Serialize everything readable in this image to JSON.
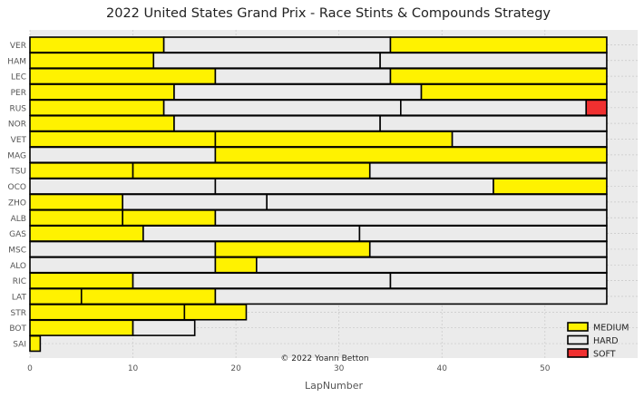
{
  "chart_data": {
    "type": "bar",
    "orientation": "horizontal",
    "stacked": true,
    "title": "2022 United States Grand Prix - Race Stints & Compounds Strategy",
    "xlabel": "LapNumber",
    "ylabel": "",
    "xlim": [
      0,
      59
    ],
    "xticks": [
      0,
      10,
      20,
      30,
      40,
      50
    ],
    "grid": true,
    "legend_position": "lower-right",
    "annotation": "© 2022 Yoann Betton",
    "compounds": [
      {
        "name": "MEDIUM",
        "color": "#fff200"
      },
      {
        "name": "HARD",
        "color": "#ebebeb"
      },
      {
        "name": "SOFT",
        "color": "#f03030"
      }
    ],
    "drivers": [
      {
        "driver": "VER",
        "stints": [
          {
            "compound": "MEDIUM",
            "start": 0,
            "end": 13
          },
          {
            "compound": "HARD",
            "start": 13,
            "end": 35
          },
          {
            "compound": "MEDIUM",
            "start": 35,
            "end": 56
          }
        ]
      },
      {
        "driver": "HAM",
        "stints": [
          {
            "compound": "MEDIUM",
            "start": 0,
            "end": 12
          },
          {
            "compound": "HARD",
            "start": 12,
            "end": 34
          },
          {
            "compound": "HARD",
            "start": 34,
            "end": 56
          }
        ]
      },
      {
        "driver": "LEC",
        "stints": [
          {
            "compound": "MEDIUM",
            "start": 0,
            "end": 18
          },
          {
            "compound": "HARD",
            "start": 18,
            "end": 35
          },
          {
            "compound": "MEDIUM",
            "start": 35,
            "end": 56
          }
        ]
      },
      {
        "driver": "PER",
        "stints": [
          {
            "compound": "MEDIUM",
            "start": 0,
            "end": 14
          },
          {
            "compound": "HARD",
            "start": 14,
            "end": 38
          },
          {
            "compound": "MEDIUM",
            "start": 38,
            "end": 56
          }
        ]
      },
      {
        "driver": "RUS",
        "stints": [
          {
            "compound": "MEDIUM",
            "start": 0,
            "end": 13
          },
          {
            "compound": "HARD",
            "start": 13,
            "end": 36
          },
          {
            "compound": "HARD",
            "start": 36,
            "end": 54
          },
          {
            "compound": "SOFT",
            "start": 54,
            "end": 56
          }
        ]
      },
      {
        "driver": "NOR",
        "stints": [
          {
            "compound": "MEDIUM",
            "start": 0,
            "end": 14
          },
          {
            "compound": "HARD",
            "start": 14,
            "end": 34
          },
          {
            "compound": "HARD",
            "start": 34,
            "end": 56
          }
        ]
      },
      {
        "driver": "VET",
        "stints": [
          {
            "compound": "MEDIUM",
            "start": 0,
            "end": 18
          },
          {
            "compound": "MEDIUM",
            "start": 18,
            "end": 41
          },
          {
            "compound": "HARD",
            "start": 41,
            "end": 56
          }
        ]
      },
      {
        "driver": "MAG",
        "stints": [
          {
            "compound": "HARD",
            "start": 0,
            "end": 18
          },
          {
            "compound": "MEDIUM",
            "start": 18,
            "end": 56
          }
        ]
      },
      {
        "driver": "TSU",
        "stints": [
          {
            "compound": "MEDIUM",
            "start": 0,
            "end": 10
          },
          {
            "compound": "MEDIUM",
            "start": 10,
            "end": 33
          },
          {
            "compound": "HARD",
            "start": 33,
            "end": 56
          }
        ]
      },
      {
        "driver": "OCO",
        "stints": [
          {
            "compound": "HARD",
            "start": 0,
            "end": 18
          },
          {
            "compound": "HARD",
            "start": 18,
            "end": 45
          },
          {
            "compound": "MEDIUM",
            "start": 45,
            "end": 56
          }
        ]
      },
      {
        "driver": "ZHO",
        "stints": [
          {
            "compound": "MEDIUM",
            "start": 0,
            "end": 9
          },
          {
            "compound": "HARD",
            "start": 9,
            "end": 23
          },
          {
            "compound": "HARD",
            "start": 23,
            "end": 56
          }
        ]
      },
      {
        "driver": "ALB",
        "stints": [
          {
            "compound": "MEDIUM",
            "start": 0,
            "end": 9
          },
          {
            "compound": "MEDIUM",
            "start": 9,
            "end": 18
          },
          {
            "compound": "HARD",
            "start": 18,
            "end": 56
          }
        ]
      },
      {
        "driver": "GAS",
        "stints": [
          {
            "compound": "MEDIUM",
            "start": 0,
            "end": 11
          },
          {
            "compound": "HARD",
            "start": 11,
            "end": 32
          },
          {
            "compound": "HARD",
            "start": 32,
            "end": 56
          }
        ]
      },
      {
        "driver": "MSC",
        "stints": [
          {
            "compound": "HARD",
            "start": 0,
            "end": 18
          },
          {
            "compound": "MEDIUM",
            "start": 18,
            "end": 33
          },
          {
            "compound": "HARD",
            "start": 33,
            "end": 56
          }
        ]
      },
      {
        "driver": "ALO",
        "stints": [
          {
            "compound": "HARD",
            "start": 0,
            "end": 18
          },
          {
            "compound": "MEDIUM",
            "start": 18,
            "end": 22
          },
          {
            "compound": "HARD",
            "start": 22,
            "end": 56
          }
        ]
      },
      {
        "driver": "RIC",
        "stints": [
          {
            "compound": "MEDIUM",
            "start": 0,
            "end": 10
          },
          {
            "compound": "HARD",
            "start": 10,
            "end": 35
          },
          {
            "compound": "HARD",
            "start": 35,
            "end": 56
          }
        ]
      },
      {
        "driver": "LAT",
        "stints": [
          {
            "compound": "MEDIUM",
            "start": 0,
            "end": 5
          },
          {
            "compound": "MEDIUM",
            "start": 5,
            "end": 18
          },
          {
            "compound": "HARD",
            "start": 18,
            "end": 56
          }
        ]
      },
      {
        "driver": "STR",
        "stints": [
          {
            "compound": "MEDIUM",
            "start": 0,
            "end": 15
          },
          {
            "compound": "MEDIUM",
            "start": 15,
            "end": 21
          }
        ]
      },
      {
        "driver": "BOT",
        "stints": [
          {
            "compound": "MEDIUM",
            "start": 0,
            "end": 10
          },
          {
            "compound": "HARD",
            "start": 10,
            "end": 16
          }
        ]
      },
      {
        "driver": "SAI",
        "stints": [
          {
            "compound": "MEDIUM",
            "start": 0,
            "end": 1
          }
        ]
      }
    ]
  }
}
